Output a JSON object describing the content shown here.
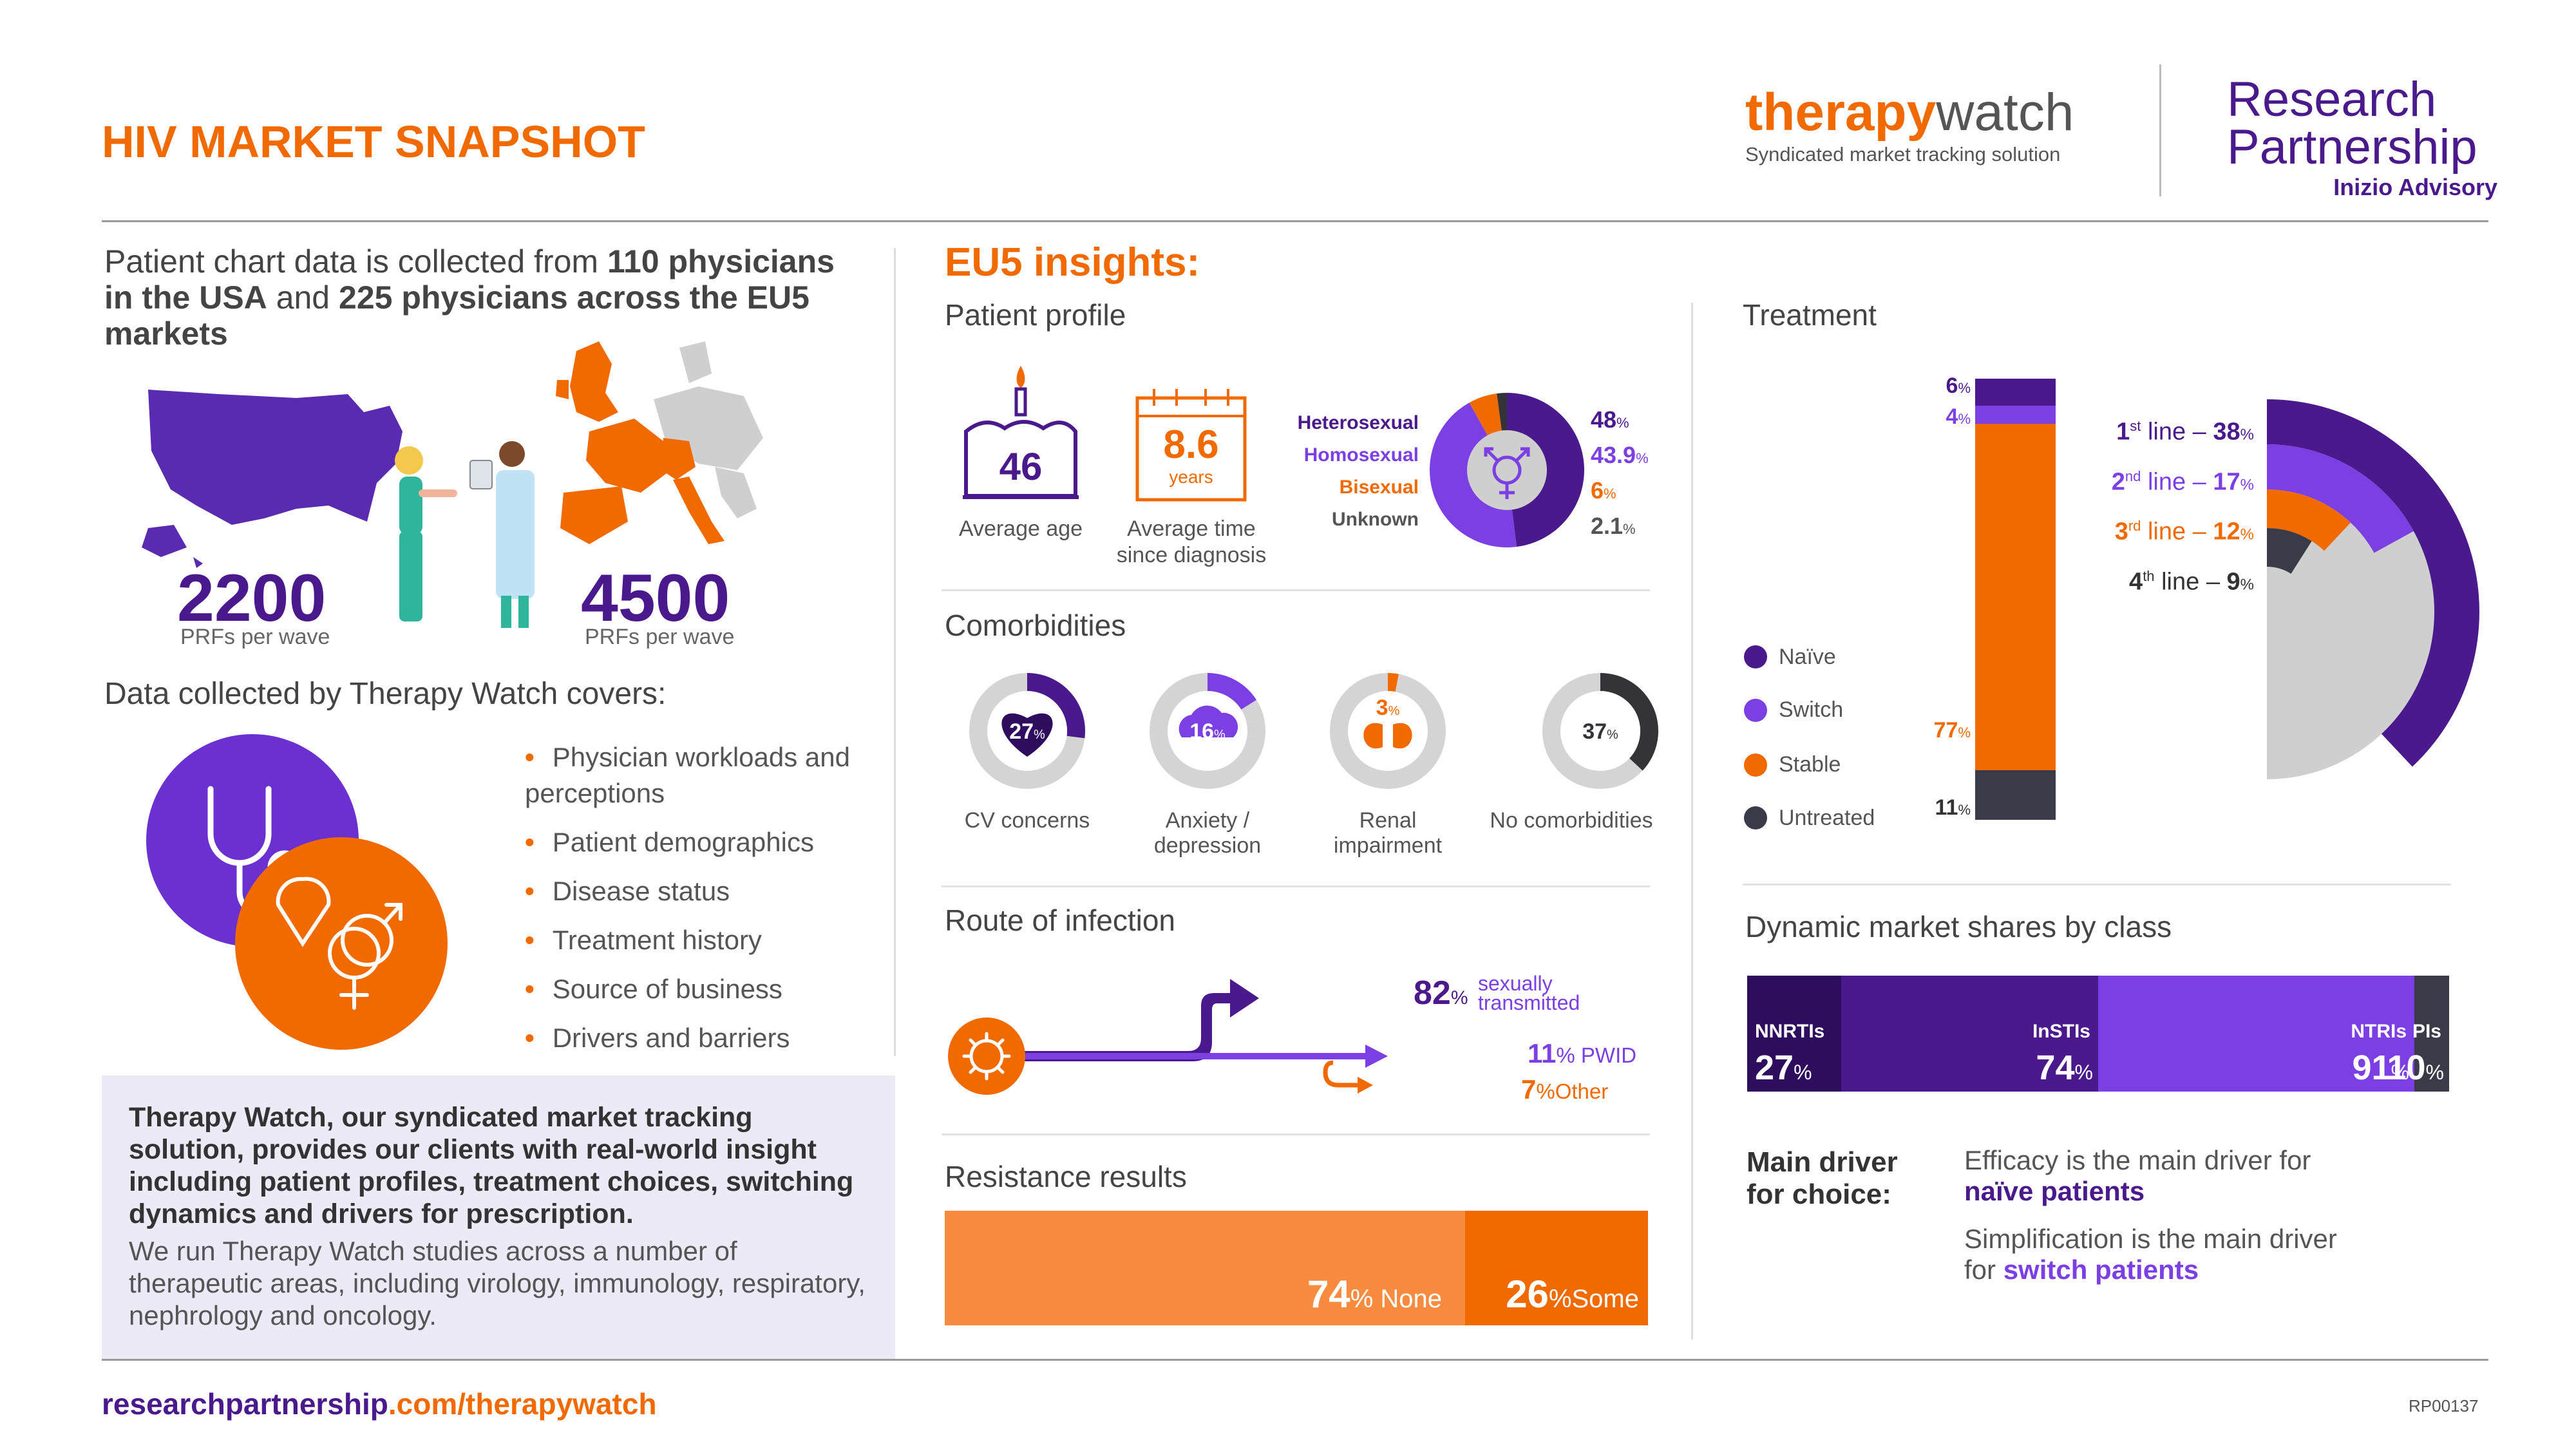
{
  "header": {
    "title": "HIV MARKET SNAPSHOT",
    "brand_bold": "therapy",
    "brand_light": "watch",
    "brand_tagline": "Syndicated market tracking solution",
    "rp_line1": "Research",
    "rp_line2": "Partnership",
    "rp_line3": "Inizio Advisory"
  },
  "left": {
    "intro_p1": "Patient chart data is collected from ",
    "intro_b1": "110 physicians in the USA",
    "intro_p2": " and ",
    "intro_b2": "225 physicians across the EU5 markets",
    "usa_value": "2200",
    "usa_label": "PRFs per wave",
    "eu_value": "4500",
    "eu_label": "PRFs per wave",
    "covers_title": "Data collected by Therapy Watch covers:",
    "covers": [
      "Physician workloads and perceptions",
      "Patient demographics",
      "Disease status",
      "Treatment history",
      "Source of business",
      "Drivers and barriers"
    ],
    "box_bold": "Therapy Watch, our syndicated market tracking solution, provides our clients with real-world insight including patient profiles, treatment choices, switching dynamics and drivers for prescription.",
    "box_text": "We run Therapy Watch studies across a number of therapeutic areas, including virology, immunology, respiratory, nephrology and oncology."
  },
  "eu5": {
    "title": "EU5 insights:",
    "profile_title": "Patient profile",
    "avg_age": "46",
    "avg_age_label": "Average age",
    "avg_time": "8.6",
    "avg_time_unit": "years",
    "avg_time_label_1": "Average time",
    "avg_time_label_2": "since diagnosis",
    "orientation": [
      {
        "label": "Heterosexual",
        "num": "48",
        "pct": "%",
        "color": "#4a1a8c"
      },
      {
        "label": "Homosexual",
        "num": "43.9",
        "pct": "%",
        "color": "#7b3fe4"
      },
      {
        "label": "Bisexual",
        "num": "6",
        "pct": "%",
        "color": "#f06a00"
      },
      {
        "label": "Unknown",
        "num": "2.1",
        "pct": "%",
        "color": "#333338"
      }
    ],
    "comorb_title": "Comorbidities",
    "comorbidities": [
      {
        "value": "27",
        "pct": "%",
        "label_1": "CV concerns",
        "label_2": "",
        "color": "#4a1a8c"
      },
      {
        "value": "16",
        "pct": "%",
        "label_1": "Anxiety /",
        "label_2": "depression",
        "color": "#7b3fe4"
      },
      {
        "value": "3",
        "pct": "%",
        "label_1": "Renal",
        "label_2": "impairment",
        "color": "#f06a00"
      },
      {
        "value": "37",
        "pct": "%",
        "label_1": "No comorbidities",
        "label_2": "",
        "color": "#333338"
      }
    ],
    "route_title": "Route of infection",
    "route_sex_num": "82",
    "route_sex_pct": "%",
    "route_sex_label_1": "sexually",
    "route_sex_label_2": "transmitted",
    "route_pwid_num": "11",
    "route_pwid_label": "% PWID",
    "route_other_num": "7",
    "route_other_label": "%Other",
    "resist_title": "Resistance results",
    "resist_none_num": "74",
    "resist_none_label": "% None",
    "resist_some_num": "26",
    "resist_some_label": "%Some",
    "resist_none_fraction": 0.74
  },
  "treatment": {
    "title": "Treatment",
    "legend": [
      {
        "label": "Naïve",
        "color": "#4a1a8c"
      },
      {
        "label": "Switch",
        "color": "#7b3fe4"
      },
      {
        "label": "Stable",
        "color": "#f06a00"
      },
      {
        "label": "Untreated",
        "color": "#3a3a48"
      }
    ],
    "bar": [
      {
        "num": "6",
        "pct": "%",
        "value": 6,
        "color": "#4a1a8c"
      },
      {
        "num": "4",
        "pct": "%",
        "value": 4,
        "color": "#7b3fe4"
      },
      {
        "num": "77",
        "pct": "%",
        "value": 77,
        "color": "#f06a00"
      },
      {
        "num": "11",
        "pct": "%",
        "value": 11,
        "color": "#3a3a48"
      }
    ],
    "lines": [
      {
        "ord": "1",
        "sup": "st",
        "txt": " line – ",
        "num": "38",
        "pct": "%",
        "value": 38,
        "color": "#4a1a8c"
      },
      {
        "ord": "2",
        "sup": "nd",
        "txt": " line – ",
        "num": "17",
        "pct": "%",
        "value": 17,
        "color": "#7b3fe4"
      },
      {
        "ord": "3",
        "sup": "rd",
        "txt": " line – ",
        "num": "12",
        "pct": "%",
        "value": 12,
        "color": "#f06a00"
      },
      {
        "ord": "4",
        "sup": "th",
        "txt": " line – ",
        "num": "9",
        "pct": "%",
        "value": 9,
        "color": "#3a3a48"
      }
    ]
  },
  "shares": {
    "title": "Dynamic market shares by class",
    "classes": [
      {
        "name": "NNRTIs",
        "num": "27",
        "pct": "%",
        "value": 27,
        "color": "#2e0c5e"
      },
      {
        "name": "InSTIs",
        "num": "74",
        "pct": "%",
        "value": 74,
        "color": "#4a1a8c"
      },
      {
        "name": "NTRIs",
        "num": "91",
        "pct": "%",
        "value": 91,
        "color": "#7b3fe4"
      },
      {
        "name": "PIs",
        "num": "10",
        "pct": "%",
        "value": 10,
        "color": "#3a3a48"
      }
    ],
    "driver_title_1": "Main driver",
    "driver_title_2": "for choice:",
    "driver1_text": "Efficacy is the main driver for",
    "driver1_bold": "naïve patients",
    "driver2_text": "Simplification is the main driver",
    "driver2_pre": "for ",
    "driver2_bold": "switch patients"
  },
  "footer": {
    "url_bold": "researchpartnership",
    "url_rest": ".com/therapywatch",
    "code": "RP00137"
  },
  "colors": {
    "orange": "#f06a00",
    "purple": "#4a1a8c",
    "violet": "#7b3fe4",
    "dark": "#3a3a48",
    "grey": "#cfcfcf"
  }
}
